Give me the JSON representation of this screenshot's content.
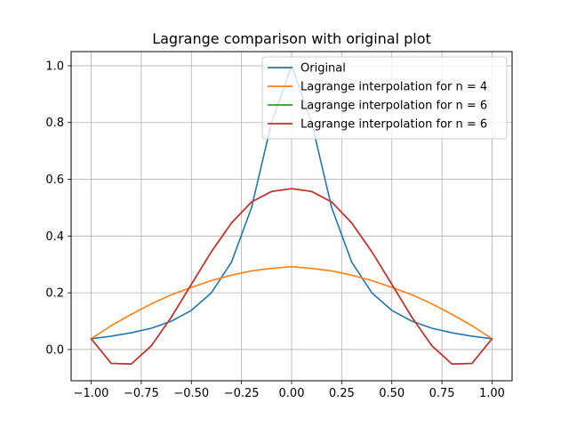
{
  "chart_data": {
    "type": "line",
    "title": "Lagrange comparison with original plot",
    "xlabel": "",
    "ylabel": "",
    "xlim": [
      -1.1,
      1.1
    ],
    "ylim": [
      -0.11,
      1.05
    ],
    "grid": true,
    "legend_position": "top-right",
    "x_ticks": [
      -1.0,
      -0.75,
      -0.5,
      -0.25,
      0.0,
      0.25,
      0.5,
      0.75,
      1.0
    ],
    "x_tick_labels": [
      "−1.00",
      "−0.75",
      "−0.50",
      "−0.25",
      "0.00",
      "0.25",
      "0.50",
      "0.75",
      "1.00"
    ],
    "y_ticks": [
      0.0,
      0.2,
      0.4,
      0.6,
      0.8,
      1.0
    ],
    "y_tick_labels": [
      "0.0",
      "0.2",
      "0.4",
      "0.6",
      "0.8",
      "1.0"
    ],
    "series": [
      {
        "name": "Original",
        "color": "#1f77b4",
        "x": [
          -1.0,
          -0.9,
          -0.8,
          -0.7,
          -0.6,
          -0.5,
          -0.4,
          -0.3,
          -0.2,
          -0.1,
          0.0,
          0.1,
          0.2,
          0.3,
          0.4,
          0.5,
          0.6,
          0.7,
          0.8,
          0.9,
          1.0
        ],
        "y": [
          0.038,
          0.047,
          0.059,
          0.075,
          0.1,
          0.138,
          0.2,
          0.308,
          0.5,
          0.8,
          1.0,
          0.8,
          0.5,
          0.308,
          0.2,
          0.138,
          0.1,
          0.075,
          0.059,
          0.047,
          0.038
        ]
      },
      {
        "name": "Lagrange interpolation for n = 4",
        "color": "#ff7f0e",
        "x": [
          -1.0,
          -0.9,
          -0.8,
          -0.7,
          -0.6,
          -0.5,
          -0.4,
          -0.3,
          -0.2,
          -0.1,
          0.0,
          0.1,
          0.2,
          0.3,
          0.4,
          0.5,
          0.6,
          0.7,
          0.8,
          0.9,
          1.0
        ],
        "y": [
          0.038,
          0.084,
          0.124,
          0.161,
          0.193,
          0.219,
          0.243,
          0.262,
          0.277,
          0.286,
          0.292,
          0.286,
          0.277,
          0.262,
          0.243,
          0.219,
          0.193,
          0.161,
          0.124,
          0.084,
          0.038
        ]
      },
      {
        "name": "Lagrange interpolation for n = 6",
        "color": "#2ca02c",
        "x": [
          -1.0,
          -0.9,
          -0.8,
          -0.7,
          -0.6,
          -0.5,
          -0.4,
          -0.3,
          -0.2,
          -0.1,
          0.0,
          0.1,
          0.2,
          0.3,
          0.4,
          0.5,
          0.6,
          0.7,
          0.8,
          0.9,
          1.0
        ],
        "y": [
          0.038,
          -0.049,
          -0.051,
          0.013,
          0.114,
          0.23,
          0.345,
          0.446,
          0.52,
          0.557,
          0.567,
          0.557,
          0.52,
          0.446,
          0.345,
          0.23,
          0.114,
          0.013,
          -0.051,
          -0.049,
          0.038
        ]
      },
      {
        "name": "Lagrange interpolation for n = 6",
        "color": "#d62728",
        "x": [
          -1.0,
          -0.9,
          -0.8,
          -0.7,
          -0.6,
          -0.5,
          -0.4,
          -0.3,
          -0.2,
          -0.1,
          0.0,
          0.1,
          0.2,
          0.3,
          0.4,
          0.5,
          0.6,
          0.7,
          0.8,
          0.9,
          1.0
        ],
        "y": [
          0.038,
          -0.049,
          -0.051,
          0.013,
          0.114,
          0.23,
          0.345,
          0.446,
          0.52,
          0.557,
          0.567,
          0.557,
          0.52,
          0.446,
          0.345,
          0.23,
          0.114,
          0.013,
          -0.051,
          -0.049,
          0.038
        ]
      }
    ]
  }
}
